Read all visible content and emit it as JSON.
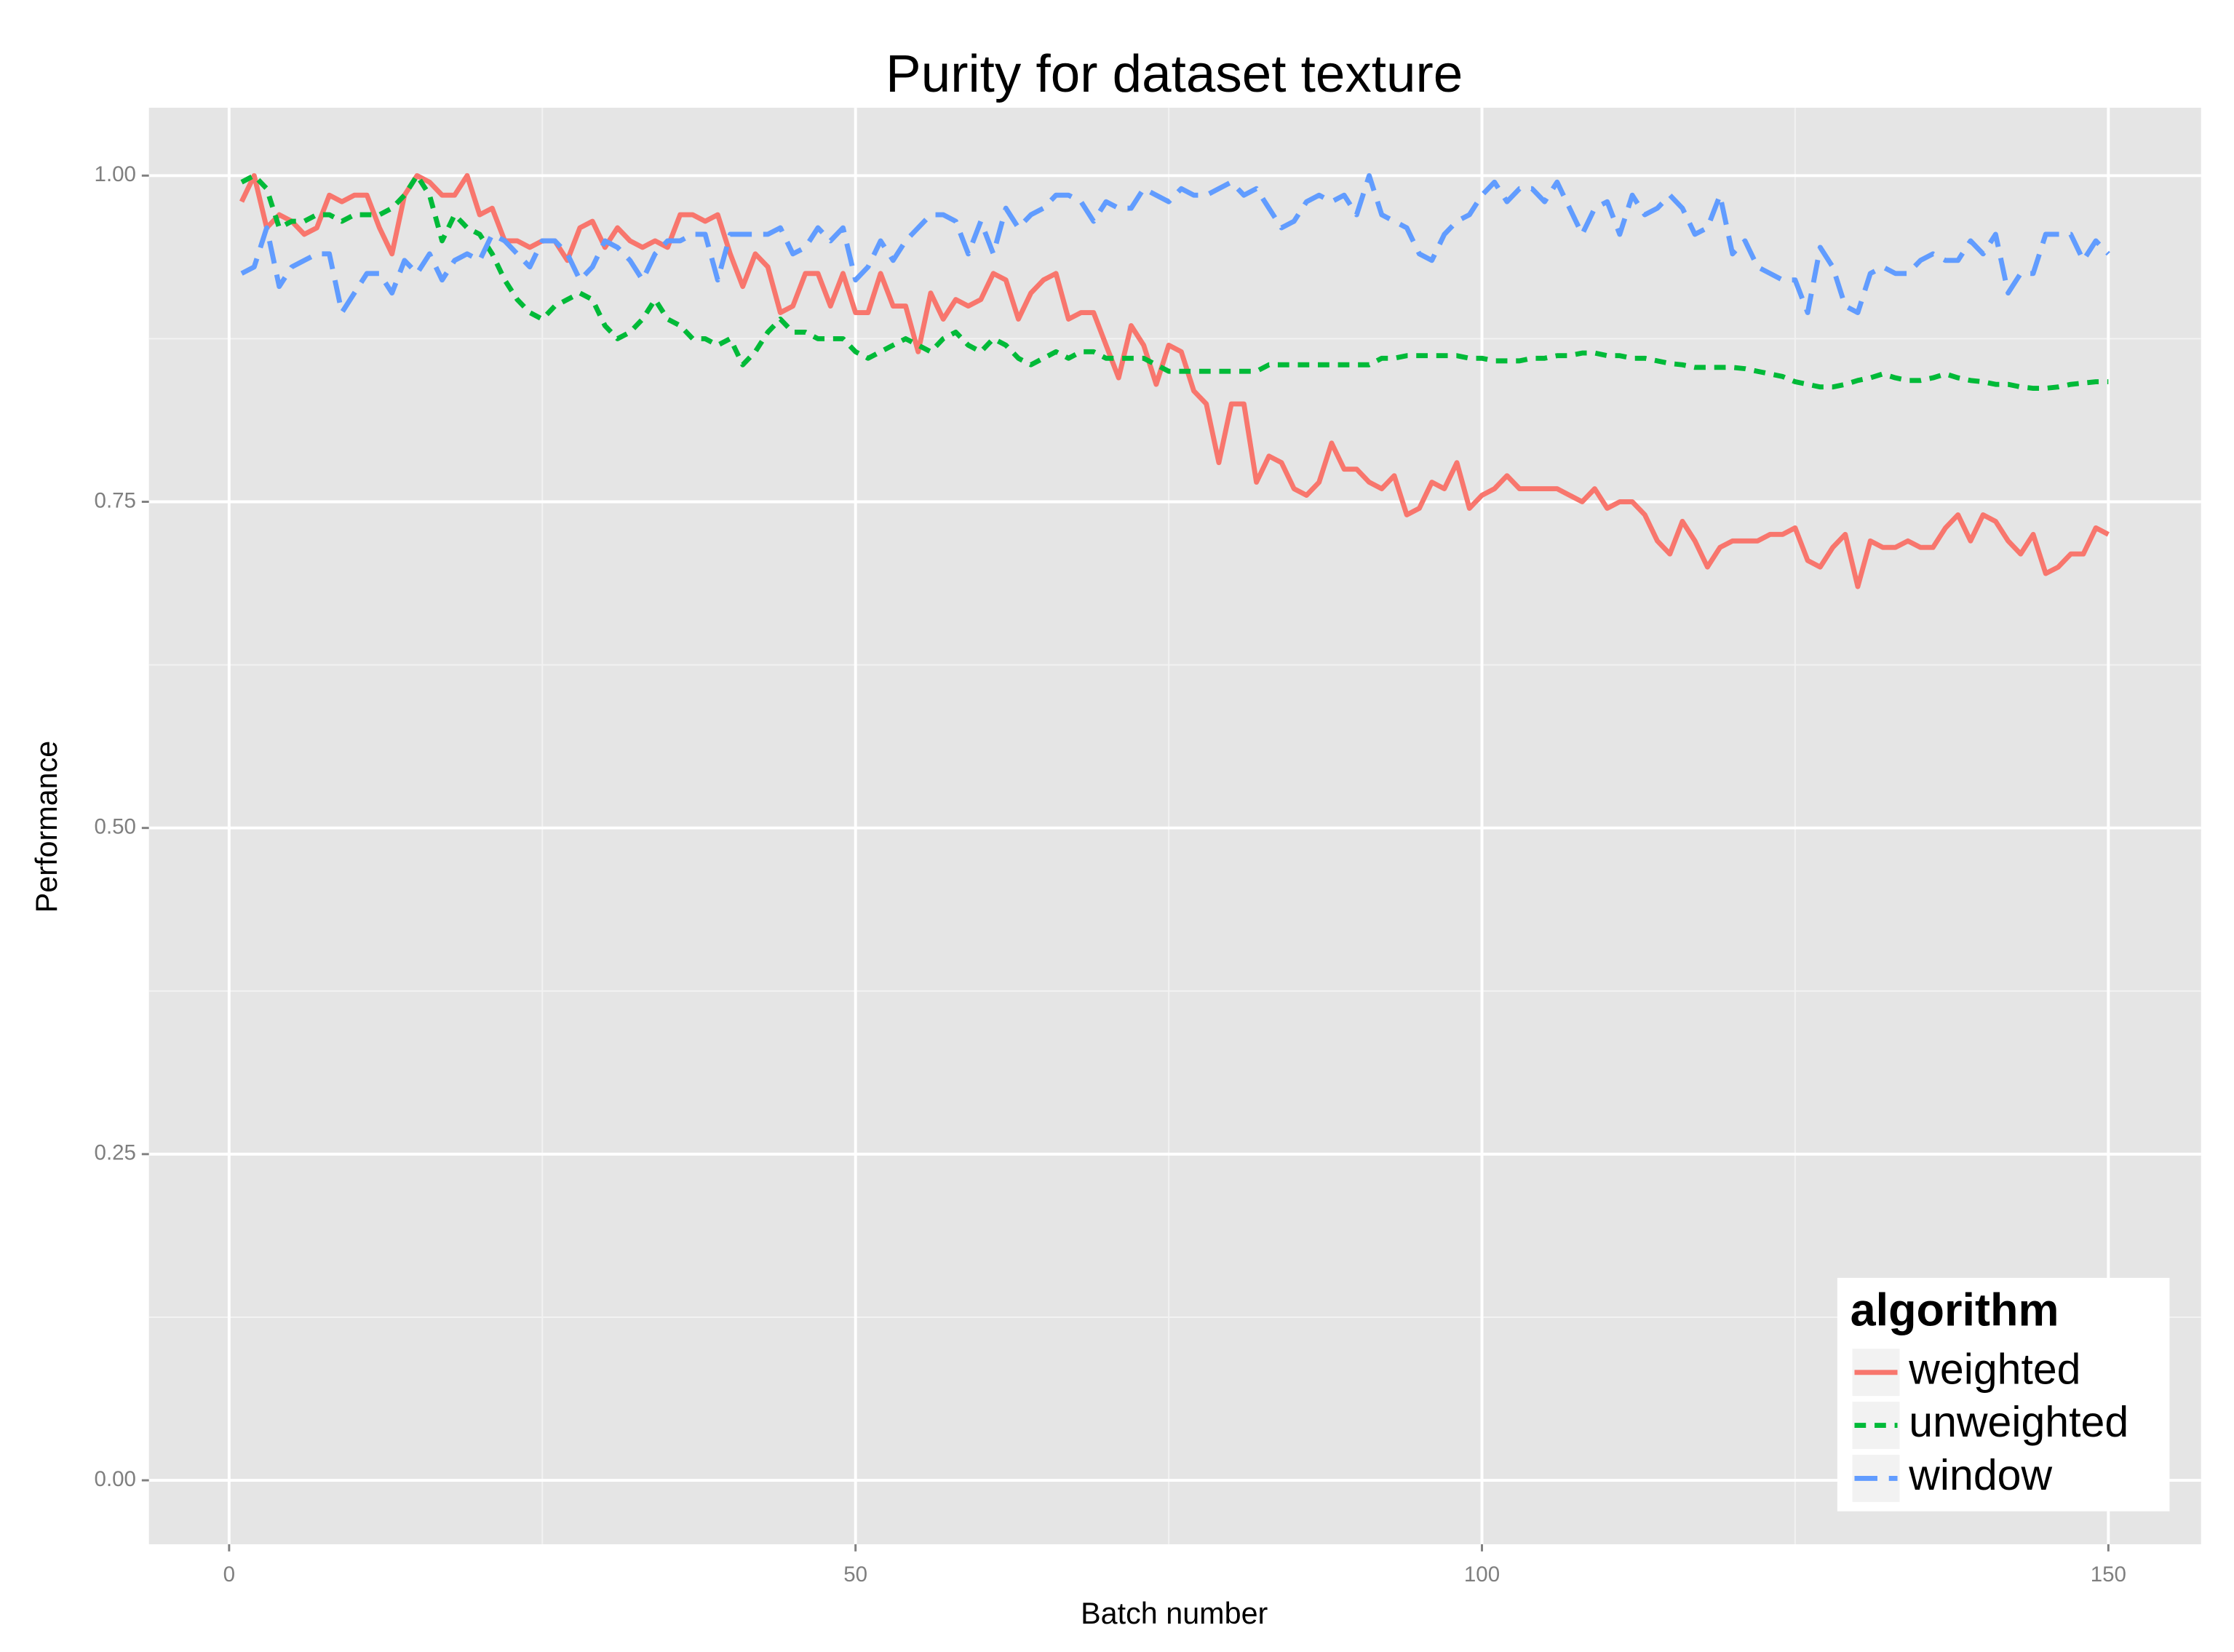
{
  "chart_data": {
    "type": "line",
    "title": "Purity for dataset texture",
    "x_label": "Batch number",
    "y_label": "Performance",
    "x": [
      1,
      2,
      3,
      4,
      5,
      6,
      7,
      8,
      9,
      10,
      11,
      12,
      13,
      14,
      15,
      16,
      17,
      18,
      19,
      20,
      21,
      22,
      23,
      24,
      25,
      26,
      27,
      28,
      29,
      30,
      31,
      32,
      33,
      34,
      35,
      36,
      37,
      38,
      39,
      40,
      41,
      42,
      43,
      44,
      45,
      46,
      47,
      48,
      49,
      50,
      51,
      52,
      53,
      54,
      55,
      56,
      57,
      58,
      59,
      60,
      61,
      62,
      63,
      64,
      65,
      66,
      67,
      68,
      69,
      70,
      71,
      72,
      73,
      74,
      75,
      76,
      77,
      78,
      79,
      80,
      81,
      82,
      83,
      84,
      85,
      86,
      87,
      88,
      89,
      90,
      91,
      92,
      93,
      94,
      95,
      96,
      97,
      98,
      99,
      100,
      101,
      102,
      103,
      104,
      105,
      106,
      107,
      108,
      109,
      110,
      111,
      112,
      113,
      114,
      115,
      116,
      117,
      118,
      119,
      120,
      121,
      122,
      123,
      124,
      125,
      126,
      127,
      128,
      129,
      130,
      131,
      132,
      133,
      134,
      135,
      136,
      137,
      138,
      139,
      140,
      141,
      142,
      143,
      144,
      145,
      146,
      147,
      148,
      149,
      150
    ],
    "series": [
      {
        "name": "weighted",
        "color": "#F8766D",
        "linetype": "solid",
        "values": [
          0.98,
          1.0,
          0.96,
          0.97,
          0.965,
          0.955,
          0.96,
          0.985,
          0.98,
          0.985,
          0.985,
          0.96,
          0.94,
          0.985,
          1.0,
          0.995,
          0.985,
          0.985,
          1.0,
          0.97,
          0.975,
          0.95,
          0.95,
          0.945,
          0.95,
          0.95,
          0.935,
          0.96,
          0.965,
          0.945,
          0.96,
          0.95,
          0.945,
          0.95,
          0.945,
          0.97,
          0.97,
          0.965,
          0.97,
          0.94,
          0.915,
          0.94,
          0.93,
          0.895,
          0.9,
          0.925,
          0.925,
          0.9,
          0.925,
          0.895,
          0.895,
          0.925,
          0.9,
          0.9,
          0.865,
          0.91,
          0.89,
          0.905,
          0.9,
          0.905,
          0.925,
          0.92,
          0.89,
          0.91,
          0.92,
          0.925,
          0.89,
          0.895,
          0.895,
          0.87,
          0.845,
          0.885,
          0.87,
          0.84,
          0.87,
          0.865,
          0.835,
          0.825,
          0.78,
          0.825,
          0.825,
          0.765,
          0.785,
          0.78,
          0.76,
          0.755,
          0.765,
          0.795,
          0.775,
          0.775,
          0.765,
          0.76,
          0.77,
          0.74,
          0.745,
          0.765,
          0.76,
          0.78,
          0.745,
          0.755,
          0.76,
          0.77,
          0.76,
          0.76,
          0.76,
          0.76,
          0.755,
          0.75,
          0.76,
          0.745,
          0.75,
          0.75,
          0.74,
          0.72,
          0.71,
          0.735,
          0.72,
          0.7,
          0.715,
          0.72,
          0.72,
          0.72,
          0.725,
          0.725,
          0.73,
          0.705,
          0.7,
          0.715,
          0.725,
          0.685,
          0.72,
          0.715,
          0.715,
          0.72,
          0.715,
          0.715,
          0.73,
          0.74,
          0.72,
          0.74,
          0.735,
          0.72,
          0.71,
          0.725,
          0.695,
          0.7,
          0.71,
          0.71,
          0.73,
          0.725
        ]
      },
      {
        "name": "unweighted",
        "color": "#00BA38",
        "linetype": "dashed",
        "values": [
          0.995,
          1.0,
          0.99,
          0.96,
          0.965,
          0.965,
          0.97,
          0.97,
          0.965,
          0.97,
          0.97,
          0.97,
          0.975,
          0.985,
          1.0,
          0.985,
          0.95,
          0.97,
          0.96,
          0.955,
          0.94,
          0.92,
          0.905,
          0.895,
          0.89,
          0.9,
          0.905,
          0.91,
          0.905,
          0.885,
          0.875,
          0.88,
          0.89,
          0.905,
          0.89,
          0.885,
          0.875,
          0.875,
          0.87,
          0.875,
          0.855,
          0.865,
          0.88,
          0.89,
          0.88,
          0.88,
          0.875,
          0.875,
          0.875,
          0.865,
          0.86,
          0.865,
          0.87,
          0.875,
          0.87,
          0.865,
          0.875,
          0.88,
          0.87,
          0.865,
          0.875,
          0.87,
          0.86,
          0.855,
          0.86,
          0.865,
          0.86,
          0.865,
          0.865,
          0.86,
          0.86,
          0.86,
          0.86,
          0.855,
          0.85,
          0.85,
          0.85,
          0.85,
          0.85,
          0.85,
          0.85,
          0.85,
          0.855,
          0.855,
          0.855,
          0.855,
          0.855,
          0.855,
          0.855,
          0.855,
          0.855,
          0.86,
          0.86,
          0.862,
          0.862,
          0.862,
          0.862,
          0.862,
          0.86,
          0.86,
          0.858,
          0.858,
          0.858,
          0.86,
          0.86,
          0.862,
          0.862,
          0.864,
          0.864,
          0.862,
          0.862,
          0.86,
          0.86,
          0.858,
          0.856,
          0.855,
          0.853,
          0.853,
          0.853,
          0.853,
          0.852,
          0.85,
          0.848,
          0.846,
          0.842,
          0.84,
          0.838,
          0.838,
          0.84,
          0.843,
          0.845,
          0.848,
          0.845,
          0.843,
          0.843,
          0.845,
          0.848,
          0.845,
          0.843,
          0.842,
          0.84,
          0.84,
          0.838,
          0.837,
          0.837,
          0.838,
          0.84,
          0.841,
          0.842,
          0.842
        ]
      },
      {
        "name": "window",
        "color": "#619CFF",
        "linetype": "longdash",
        "values": [
          0.925,
          0.93,
          0.96,
          0.915,
          0.93,
          0.935,
          0.94,
          0.94,
          0.895,
          0.91,
          0.925,
          0.925,
          0.91,
          0.935,
          0.925,
          0.94,
          0.92,
          0.935,
          0.94,
          0.935,
          0.955,
          0.95,
          0.94,
          0.93,
          0.95,
          0.95,
          0.94,
          0.92,
          0.93,
          0.95,
          0.945,
          0.935,
          0.92,
          0.94,
          0.95,
          0.95,
          0.955,
          0.955,
          0.92,
          0.955,
          0.955,
          0.955,
          0.955,
          0.96,
          0.94,
          0.945,
          0.96,
          0.95,
          0.96,
          0.92,
          0.93,
          0.95,
          0.935,
          0.95,
          0.96,
          0.97,
          0.97,
          0.965,
          0.94,
          0.965,
          0.94,
          0.975,
          0.96,
          0.97,
          0.975,
          0.985,
          0.985,
          0.98,
          0.965,
          0.98,
          0.975,
          0.975,
          0.99,
          0.985,
          0.98,
          0.99,
          0.985,
          0.985,
          0.99,
          0.995,
          0.985,
          0.99,
          0.975,
          0.96,
          0.965,
          0.98,
          0.985,
          0.98,
          0.985,
          0.97,
          1.0,
          0.97,
          0.965,
          0.96,
          0.94,
          0.935,
          0.955,
          0.965,
          0.97,
          0.985,
          0.995,
          0.98,
          0.99,
          0.99,
          0.98,
          0.995,
          0.975,
          0.955,
          0.975,
          0.98,
          0.955,
          0.985,
          0.97,
          0.975,
          0.985,
          0.975,
          0.955,
          0.96,
          0.985,
          0.94,
          0.95,
          0.93,
          0.925,
          0.92,
          0.92,
          0.895,
          0.945,
          0.93,
          0.9,
          0.895,
          0.925,
          0.93,
          0.925,
          0.925,
          0.935,
          0.94,
          0.935,
          0.935,
          0.95,
          0.94,
          0.955,
          0.91,
          0.925,
          0.925,
          0.955,
          0.955,
          0.955,
          0.935,
          0.95,
          0.94
        ]
      }
    ],
    "xlim": [
      -6.4,
      157.4
    ],
    "ylim": [
      -0.049,
      1.052
    ],
    "xticks": [
      0,
      50,
      100,
      150
    ],
    "yticks": [
      {
        "value": 0,
        "label": "0.00"
      },
      {
        "value": 0.25,
        "label": "0.25"
      },
      {
        "value": 0.5,
        "label": "0.50"
      },
      {
        "value": 0.75,
        "label": "0.75"
      },
      {
        "value": 1,
        "label": "1.00"
      }
    ],
    "x_minor_ticks": [
      25,
      75,
      125
    ],
    "y_minor_ticks": [
      0.125,
      0.375,
      0.625,
      0.875
    ],
    "grid": true,
    "legend_title": "algorithm",
    "legend_position": "bottom-right"
  }
}
